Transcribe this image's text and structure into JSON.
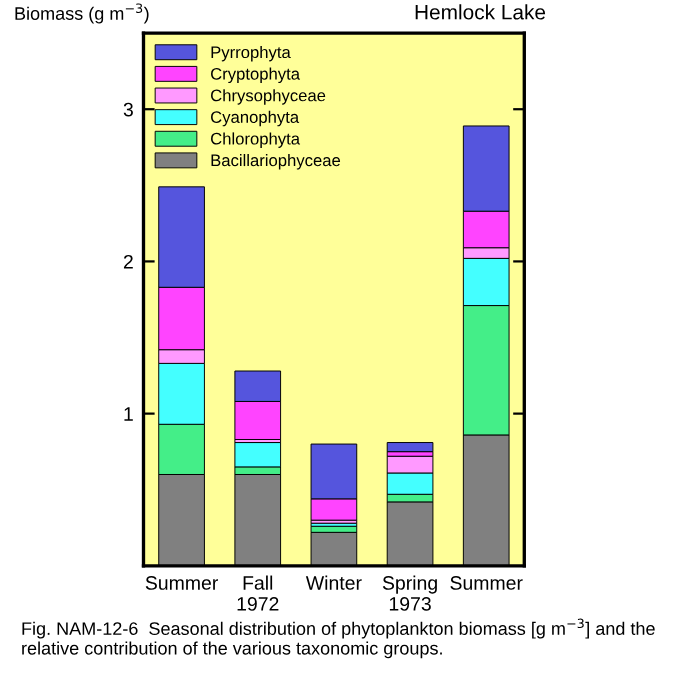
{
  "chart_data": {
    "type": "bar",
    "stacked": true,
    "title": "Hemlock Lake",
    "ylabel": "Biomass (g m$^{−3}$)",
    "categories": [
      "Summer",
      "Fall\n1972",
      "Winter",
      "Spring\n1973",
      "Summer"
    ],
    "series": [
      {
        "name": "Bacillariophyceae",
        "color": "#808080",
        "values": [
          0.6,
          0.6,
          0.22,
          0.42,
          0.86
        ]
      },
      {
        "name": "Chlorophyta",
        "color": "#44ee88",
        "values": [
          0.33,
          0.05,
          0.04,
          0.05,
          0.85
        ]
      },
      {
        "name": "Cyanophyta",
        "color": "#44ffff",
        "values": [
          0.4,
          0.16,
          0.02,
          0.14,
          0.31
        ]
      },
      {
        "name": "Chrysophyceae",
        "color": "#ff99ff",
        "values": [
          0.09,
          0.02,
          0.02,
          0.11,
          0.07
        ]
      },
      {
        "name": "Cryptophyta",
        "color": "#ff44ff",
        "values": [
          0.41,
          0.25,
          0.14,
          0.03,
          0.24
        ]
      },
      {
        "name": "Pyrrophyta",
        "color": "#5555dd",
        "values": [
          0.66,
          0.2,
          0.36,
          0.06,
          0.56
        ]
      }
    ],
    "ylim": [
      0,
      3.5
    ],
    "yticks": [
      1,
      2,
      3
    ],
    "legend": "top left",
    "annotations": [
      "Fig. NAM-12-6  Seasonal distribution of phytoplankton biomass [g m$^{−3}$] and the relative contribution of the various taxonomic groups."
    ]
  }
}
